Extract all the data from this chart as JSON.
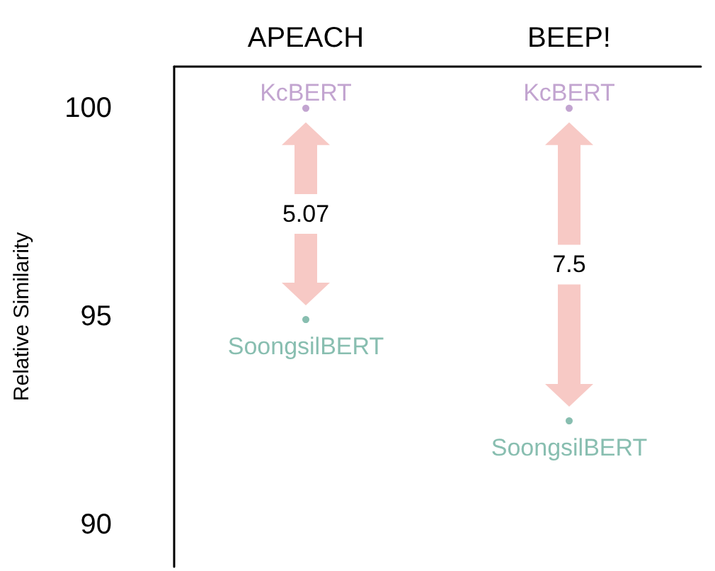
{
  "chart_data": {
    "type": "scatter",
    "ylabel": "Relative Similarity",
    "categories": [
      "APEACH",
      "BEEP!"
    ],
    "series": [
      {
        "name": "KcBERT",
        "color": "#b38dc4",
        "values": [
          100,
          100
        ]
      },
      {
        "name": "SoongsilBERT",
        "color": "#6aae9c",
        "values": [
          94.93,
          92.5
        ]
      }
    ],
    "ylim": [
      89,
      101
    ],
    "yticks": [
      90,
      95,
      100
    ],
    "grid": false,
    "legend": false,
    "marker": "circle",
    "annotations": [
      "5.07",
      "7.5"
    ]
  }
}
